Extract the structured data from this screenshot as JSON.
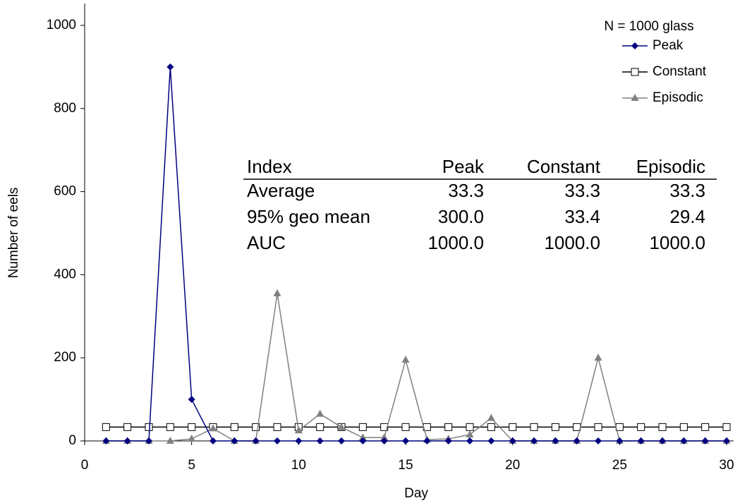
{
  "chart_data": {
    "type": "line",
    "x_label": "Day",
    "y_label": "Number of eels",
    "x": [
      1,
      2,
      3,
      4,
      5,
      6,
      7,
      8,
      9,
      10,
      11,
      12,
      13,
      14,
      15,
      16,
      17,
      18,
      19,
      20,
      21,
      22,
      23,
      24,
      25,
      26,
      27,
      28,
      29,
      30
    ],
    "xlim": [
      0,
      30
    ],
    "xticks": [
      0,
      5,
      10,
      15,
      20,
      25,
      30
    ],
    "ylim": [
      0,
      1000
    ],
    "yticks": [
      0,
      200,
      400,
      600,
      800,
      1000
    ],
    "legend_title": "N = 1000 glass",
    "legend_position": "upper right",
    "series": [
      {
        "name": "Peak",
        "color": "#000080",
        "marker": "diamond",
        "values": [
          0,
          0,
          0,
          900,
          100,
          0,
          0,
          0,
          0,
          0,
          0,
          0,
          0,
          0,
          0,
          0,
          0,
          0,
          0,
          0,
          0,
          0,
          0,
          0,
          0,
          0,
          0,
          0,
          0,
          0
        ]
      },
      {
        "name": "Constant",
        "color": "#000000",
        "marker": "square-open",
        "values": [
          33.3,
          33.3,
          33.3,
          33.3,
          33.3,
          33.3,
          33.3,
          33.3,
          33.3,
          33.3,
          33.3,
          33.3,
          33.3,
          33.3,
          33.3,
          33.3,
          33.3,
          33.3,
          33.3,
          33.3,
          33.3,
          33.3,
          33.3,
          33.3,
          33.3,
          33.3,
          33.3,
          33.3,
          33.3,
          33.3
        ]
      },
      {
        "name": "Episodic",
        "color": "#808080",
        "marker": "triangle",
        "values": [
          0,
          0,
          0,
          0,
          5,
          30,
          0,
          0,
          355,
          25,
          65,
          33,
          8,
          8,
          195,
          3,
          5,
          15,
          55,
          0,
          0,
          0,
          0,
          200,
          0,
          0,
          0,
          0,
          0,
          0
        ]
      }
    ],
    "table": {
      "header": [
        "Index",
        "Peak",
        "Constant",
        "Episodic"
      ],
      "rows": [
        [
          "Average",
          "33.3",
          "33.3",
          "33.3"
        ],
        [
          "95% geo mean",
          "300.0",
          "33.4",
          "29.4"
        ],
        [
          "AUC",
          "1000.0",
          "1000.0",
          "1000.0"
        ]
      ]
    }
  }
}
